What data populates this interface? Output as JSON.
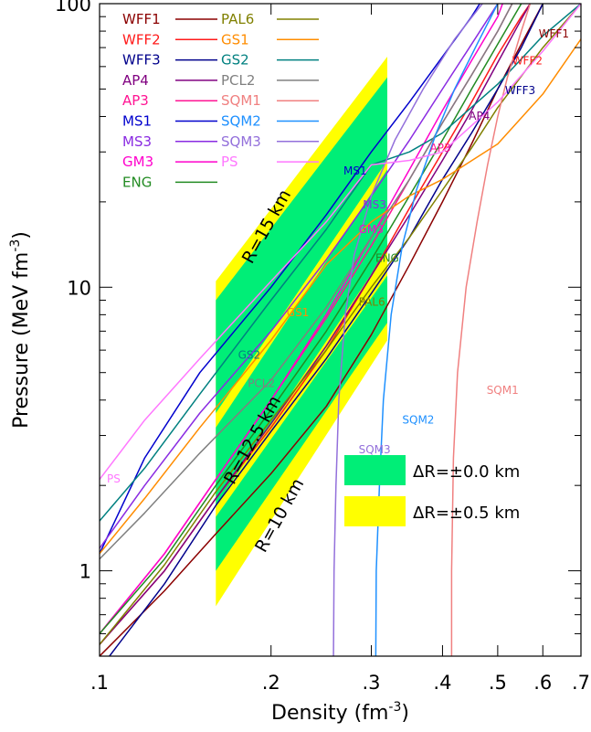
{
  "chart_data": {
    "type": "line",
    "xlabel": "Density (fm<sup>-3</sup>)",
    "xlabel_text": "Density (fm",
    "xlabel_exp": "-3",
    "xlabel_close": ")",
    "ylabel_text": "Pressure (MeV fm",
    "ylabel_exp": "-3",
    "ylabel_close": ")",
    "x_scale": "log",
    "y_scale": "log",
    "xlim": [
      0.1,
      0.7
    ],
    "ylim": [
      0.5,
      100
    ],
    "x_ticks": [
      {
        "value": 0.1,
        "label": ".1"
      },
      {
        "value": 0.2,
        "label": ".2"
      },
      {
        "value": 0.3,
        "label": ".3"
      },
      {
        "value": 0.4,
        "label": ".4"
      },
      {
        "value": 0.5,
        "label": ".5"
      },
      {
        "value": 0.6,
        "label": ".6"
      },
      {
        "value": 0.7,
        "label": ".7"
      }
    ],
    "y_ticks": [
      {
        "value": 1,
        "label": "1"
      },
      {
        "value": 10,
        "label": "10"
      },
      {
        "value": 100,
        "label": "100"
      }
    ],
    "grid": false,
    "legend_position": "top-left",
    "series": [
      {
        "name": "WFF1",
        "color": "#8b0000",
        "points": [
          [
            0.1,
            0.5
          ],
          [
            0.13,
            0.85
          ],
          [
            0.16,
            1.35
          ],
          [
            0.2,
            2.2
          ],
          [
            0.25,
            3.8
          ],
          [
            0.3,
            6.8
          ],
          [
            0.35,
            12
          ],
          [
            0.4,
            20
          ],
          [
            0.45,
            32
          ],
          [
            0.5,
            50
          ],
          [
            0.55,
            72
          ],
          [
            0.6,
            100
          ]
        ],
        "label_at": [
          0.59,
          76
        ]
      },
      {
        "name": "WFF2",
        "color": "#ff1a1a",
        "points": [
          [
            0.1,
            0.55
          ],
          [
            0.13,
            1.0
          ],
          [
            0.16,
            1.8
          ],
          [
            0.2,
            3.2
          ],
          [
            0.25,
            6
          ],
          [
            0.3,
            11
          ],
          [
            0.35,
            19
          ],
          [
            0.4,
            30
          ],
          [
            0.45,
            45
          ],
          [
            0.5,
            66
          ],
          [
            0.55,
            90
          ],
          [
            0.57,
            100
          ]
        ],
        "label_at": [
          0.53,
          61
        ]
      },
      {
        "name": "WFF3",
        "color": "#00008b",
        "points": [
          [
            0.1,
            0.45
          ],
          [
            0.13,
            0.9
          ],
          [
            0.16,
            1.7
          ],
          [
            0.2,
            3.1
          ],
          [
            0.25,
            5.6
          ],
          [
            0.3,
            9.5
          ],
          [
            0.35,
            15
          ],
          [
            0.4,
            24
          ],
          [
            0.45,
            35
          ],
          [
            0.5,
            50
          ],
          [
            0.55,
            70
          ],
          [
            0.6,
            100
          ]
        ],
        "label_at": [
          0.515,
          48
        ]
      },
      {
        "name": "AP4",
        "color": "#800080",
        "points": [
          [
            0.1,
            0.55
          ],
          [
            0.13,
            1.0
          ],
          [
            0.16,
            1.8
          ],
          [
            0.2,
            3.3
          ],
          [
            0.25,
            6.2
          ],
          [
            0.3,
            11
          ],
          [
            0.35,
            18
          ],
          [
            0.4,
            28
          ],
          [
            0.45,
            42
          ],
          [
            0.5,
            62
          ],
          [
            0.55,
            88
          ],
          [
            0.57,
            100
          ]
        ],
        "label_at": [
          0.445,
          39
        ]
      },
      {
        "name": "AP3",
        "color": "#ff1493",
        "points": [
          [
            0.1,
            0.6
          ],
          [
            0.13,
            1.15
          ],
          [
            0.16,
            2.1
          ],
          [
            0.2,
            4.0
          ],
          [
            0.25,
            7.8
          ],
          [
            0.3,
            14
          ],
          [
            0.35,
            24
          ],
          [
            0.4,
            38
          ],
          [
            0.45,
            56
          ],
          [
            0.5,
            80
          ],
          [
            0.53,
            100
          ]
        ],
        "label_at": [
          0.38,
          30
        ]
      },
      {
        "name": "MS1",
        "color": "#0000cd",
        "points": [
          [
            0.1,
            1.15
          ],
          [
            0.12,
            2.5
          ],
          [
            0.15,
            5.0
          ],
          [
            0.2,
            10
          ],
          [
            0.25,
            18
          ],
          [
            0.3,
            30
          ],
          [
            0.35,
            45
          ],
          [
            0.4,
            65
          ],
          [
            0.45,
            90
          ],
          [
            0.465,
            100
          ]
        ],
        "label_at": [
          0.268,
          25
        ]
      },
      {
        "name": "MS3",
        "color": "#8a2be2",
        "points": [
          [
            0.1,
            1.2
          ],
          [
            0.12,
            2.0
          ],
          [
            0.15,
            3.6
          ],
          [
            0.2,
            7
          ],
          [
            0.25,
            12.5
          ],
          [
            0.3,
            21
          ],
          [
            0.35,
            33
          ],
          [
            0.4,
            50
          ],
          [
            0.45,
            72
          ],
          [
            0.5,
            100
          ]
        ],
        "label_at": [
          0.29,
          19
        ]
      },
      {
        "name": "GM3",
        "color": "#ff00cc",
        "points": [
          [
            0.1,
            0.6
          ],
          [
            0.13,
            1.15
          ],
          [
            0.16,
            2.1
          ],
          [
            0.2,
            4.0
          ],
          [
            0.25,
            8
          ],
          [
            0.3,
            15
          ],
          [
            0.35,
            26
          ],
          [
            0.4,
            42
          ],
          [
            0.45,
            63
          ],
          [
            0.5,
            90
          ],
          [
            0.51,
            100
          ]
        ],
        "label_at": [
          0.285,
          15.5
        ]
      },
      {
        "name": "ENG",
        "color": "#228b22",
        "points": [
          [
            0.1,
            0.6
          ],
          [
            0.13,
            1.1
          ],
          [
            0.16,
            2.0
          ],
          [
            0.2,
            3.7
          ],
          [
            0.25,
            7
          ],
          [
            0.3,
            12.5
          ],
          [
            0.35,
            21
          ],
          [
            0.4,
            33
          ],
          [
            0.45,
            50
          ],
          [
            0.5,
            72
          ],
          [
            0.55,
            100
          ]
        ],
        "label_at": [
          0.305,
          12.3
        ]
      },
      {
        "name": "PAL6",
        "color": "#808000",
        "points": [
          [
            0.1,
            0.55
          ],
          [
            0.13,
            1.05
          ],
          [
            0.16,
            1.9
          ],
          [
            0.2,
            3.4
          ],
          [
            0.25,
            6
          ],
          [
            0.3,
            10
          ],
          [
            0.35,
            15
          ],
          [
            0.4,
            22
          ],
          [
            0.45,
            31
          ],
          [
            0.5,
            43
          ],
          [
            0.6,
            70
          ],
          [
            0.7,
            100
          ]
        ],
        "label_at": [
          0.285,
          8.6
        ]
      },
      {
        "name": "GS1",
        "color": "#ff8c00",
        "points": [
          [
            0.1,
            1.15
          ],
          [
            0.12,
            1.8
          ],
          [
            0.15,
            3.2
          ],
          [
            0.2,
            6.5
          ],
          [
            0.25,
            12
          ],
          [
            0.3,
            17
          ],
          [
            0.35,
            21
          ],
          [
            0.4,
            24
          ],
          [
            0.5,
            32
          ],
          [
            0.6,
            48
          ],
          [
            0.7,
            75
          ]
        ],
        "label_at": [
          0.213,
          7.9
        ]
      },
      {
        "name": "GS2",
        "color": "#008080",
        "points": [
          [
            0.1,
            1.5
          ],
          [
            0.12,
            2.3
          ],
          [
            0.15,
            4.2
          ],
          [
            0.2,
            9
          ],
          [
            0.25,
            16
          ],
          [
            0.3,
            27
          ],
          [
            0.35,
            30
          ],
          [
            0.4,
            35
          ],
          [
            0.5,
            52
          ],
          [
            0.6,
            77
          ],
          [
            0.7,
            100
          ]
        ],
        "label_at": [
          0.175,
          5.6
        ]
      },
      {
        "name": "PCL2",
        "color": "#808080",
        "points": [
          [
            0.1,
            1.1
          ],
          [
            0.12,
            1.6
          ],
          [
            0.15,
            2.6
          ],
          [
            0.2,
            4.7
          ],
          [
            0.25,
            8.5
          ],
          [
            0.3,
            15
          ],
          [
            0.35,
            24
          ],
          [
            0.4,
            38
          ],
          [
            0.45,
            56
          ],
          [
            0.5,
            80
          ],
          [
            0.53,
            100
          ]
        ],
        "label_at": [
          0.182,
          4.45
        ]
      },
      {
        "name": "SQM1",
        "color": "#f08080",
        "points": [
          [
            0.415,
            0.3
          ],
          [
            0.415,
            1.0
          ],
          [
            0.418,
            2.5
          ],
          [
            0.425,
            5
          ],
          [
            0.44,
            10
          ],
          [
            0.46,
            17
          ],
          [
            0.48,
            27
          ],
          [
            0.5,
            40
          ],
          [
            0.52,
            55
          ],
          [
            0.55,
            80
          ],
          [
            0.57,
            100
          ]
        ],
        "label_at": [
          0.478,
          4.2
        ]
      },
      {
        "name": "SQM2",
        "color": "#1e90ff",
        "points": [
          [
            0.305,
            0.3
          ],
          [
            0.306,
            1.0
          ],
          [
            0.31,
            2.0
          ],
          [
            0.315,
            4
          ],
          [
            0.325,
            8
          ],
          [
            0.34,
            14
          ],
          [
            0.36,
            22
          ],
          [
            0.39,
            35
          ],
          [
            0.42,
            50
          ],
          [
            0.46,
            72
          ],
          [
            0.5,
            100
          ]
        ],
        "label_at": [
          0.34,
          3.3
        ]
      },
      {
        "name": "SQM3",
        "color": "#9370db",
        "points": [
          [
            0.257,
            0.3
          ],
          [
            0.258,
            1.0
          ],
          [
            0.26,
            2.0
          ],
          [
            0.263,
            4
          ],
          [
            0.27,
            8
          ],
          [
            0.28,
            13
          ],
          [
            0.3,
            21
          ],
          [
            0.33,
            33
          ],
          [
            0.37,
            50
          ],
          [
            0.42,
            75
          ],
          [
            0.47,
            100
          ]
        ],
        "label_at": [
          0.285,
          2.6
        ]
      },
      {
        "name": "PS",
        "color": "#ff77ff",
        "points": [
          [
            0.1,
            2.1
          ],
          [
            0.12,
            3.4
          ],
          [
            0.15,
            5.6
          ],
          [
            0.2,
            10.5
          ],
          [
            0.25,
            17
          ],
          [
            0.3,
            27
          ],
          [
            0.35,
            28
          ],
          [
            0.4,
            30
          ],
          [
            0.5,
            45
          ],
          [
            0.6,
            68
          ],
          [
            0.7,
            100
          ]
        ],
        "label_at": [
          0.103,
          2.05
        ]
      }
    ],
    "bands": {
      "radii_labels": [
        "R=15 km",
        "R=12.5 km",
        "R=10 km"
      ],
      "x_range": [
        0.16,
        0.32
      ],
      "green_color": "#00ee77",
      "yellow_color": "#ffff00",
      "green": [
        {
          "y_lo": [
            3.6,
            28
          ],
          "y_hi": [
            9.0,
            55
          ]
        },
        {
          "y_lo": [
            1.7,
            13.5
          ],
          "y_hi": [
            3.2,
            26
          ]
        },
        {
          "y_lo": [
            1.0,
            7.5
          ],
          "y_hi": [
            1.55,
            11
          ]
        }
      ],
      "yellow": [
        {
          "y_lo": [
            3.2,
            25
          ],
          "y_hi": [
            10.5,
            65
          ]
        },
        {
          "y_lo": [
            1.3,
            11
          ],
          "y_hi": [
            4.2,
            32
          ]
        },
        {
          "y_lo": [
            0.75,
            6.5
          ],
          "y_hi": [
            2.0,
            13
          ]
        }
      ],
      "label_positions": [
        [
          0.185,
          12
        ],
        [
          0.172,
          2.0
        ],
        [
          0.195,
          1.15
        ]
      ],
      "label_angle": -61
    },
    "key": [
      {
        "label": "ΔR=±0.0 km",
        "color": "#00ee77"
      },
      {
        "label": "ΔR=±0.5 km",
        "color": "#ffff00"
      }
    ]
  }
}
